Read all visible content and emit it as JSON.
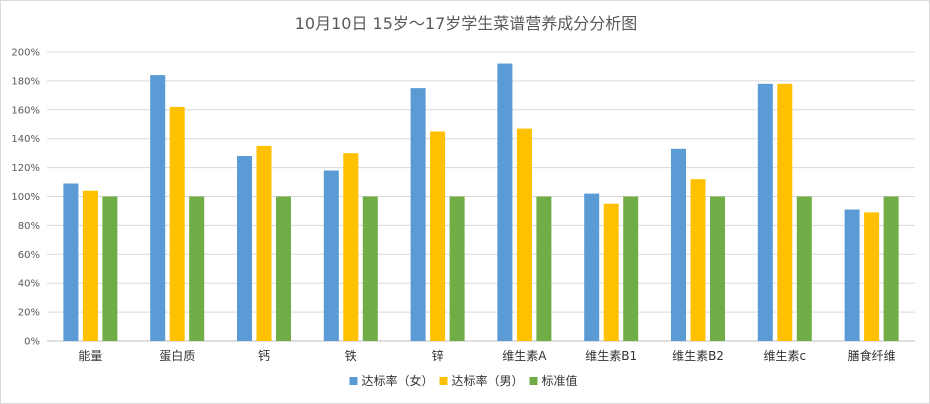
{
  "chart_data": {
    "type": "bar",
    "title": "10月10日 15岁～17岁学生菜谱营养成分分析图",
    "categories": [
      "能量",
      "蛋白质",
      "钙",
      "铁",
      "锌",
      "维生素A",
      "维生素B1",
      "维生素B2",
      "维生素c",
      "膳食纤维"
    ],
    "series": [
      {
        "name": "达标率（女）",
        "color": "#5b9bd5",
        "values": [
          109,
          184,
          128,
          118,
          175,
          192,
          102,
          133,
          178,
          91
        ]
      },
      {
        "name": "达标率（男）",
        "color": "#ffc000",
        "values": [
          104,
          162,
          135,
          130,
          145,
          147,
          95,
          112,
          178,
          89
        ]
      },
      {
        "name": "标准值",
        "color": "#70ad47",
        "values": [
          100,
          100,
          100,
          100,
          100,
          100,
          100,
          100,
          100,
          100
        ]
      }
    ],
    "yticks": [
      "0%",
      "20%",
      "40%",
      "60%",
      "80%",
      "100%",
      "120%",
      "140%",
      "160%",
      "180%",
      "200%"
    ],
    "ylim": [
      0,
      200
    ],
    "grid": true,
    "legend_position": "bottom"
  }
}
